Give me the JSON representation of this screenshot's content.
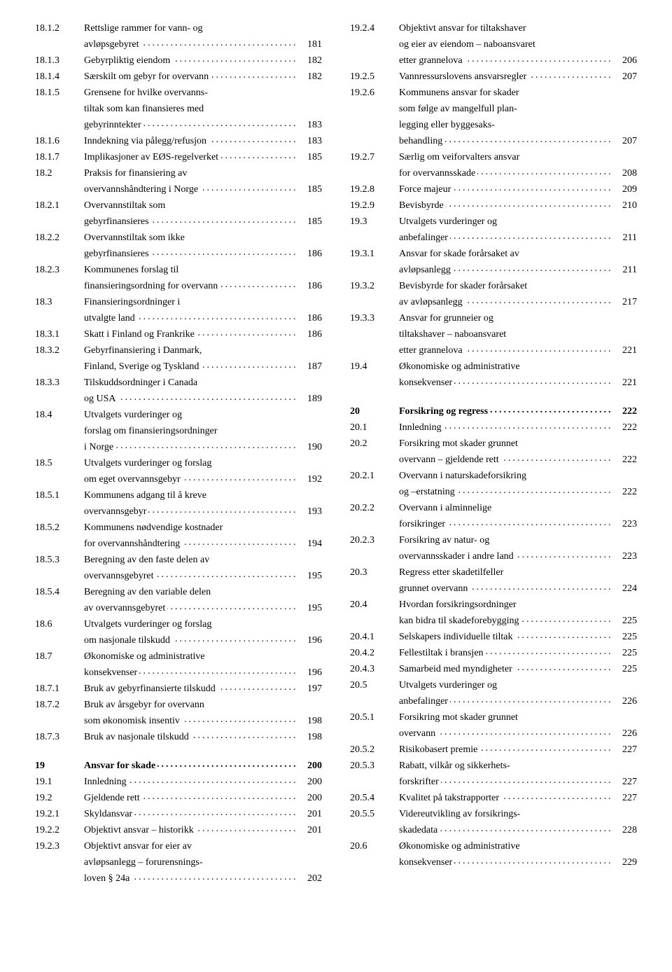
{
  "left": [
    {
      "num": "18.1.2",
      "lines": [
        "Rettslige rammer for vann- og",
        "avløpsgebyret"
      ],
      "page": "181"
    },
    {
      "num": "18.1.3",
      "lines": [
        "Gebyrpliktig eiendom"
      ],
      "page": "182"
    },
    {
      "num": "18.1.4",
      "lines": [
        "Særskilt om gebyr for overvann"
      ],
      "page": "182"
    },
    {
      "num": "18.1.5",
      "lines": [
        "Grensene for hvilke overvanns-",
        "tiltak som kan finansieres med",
        "gebyrinntekter"
      ],
      "page": "183"
    },
    {
      "num": "18.1.6",
      "lines": [
        "Inndekning via pålegg/refusjon"
      ],
      "page": "183"
    },
    {
      "num": "18.1.7",
      "lines": [
        "Implikasjoner av EØS-regelverket"
      ],
      "page": "185"
    },
    {
      "num": "18.2",
      "lines": [
        "Praksis for finansiering av",
        "overvannshåndtering i Norge"
      ],
      "page": "185"
    },
    {
      "num": "18.2.1",
      "lines": [
        "Overvannstiltak som",
        "gebyrfinansieres"
      ],
      "page": "185"
    },
    {
      "num": "18.2.2",
      "lines": [
        "Overvannstiltak som ikke",
        "gebyrfinansieres"
      ],
      "page": "186"
    },
    {
      "num": "18.2.3",
      "lines": [
        "Kommunenes forslag til",
        "finansieringsordning for overvann"
      ],
      "page": "186"
    },
    {
      "num": "18.3",
      "lines": [
        "Finansieringsordninger i",
        "utvalgte land"
      ],
      "page": "186"
    },
    {
      "num": "18.3.1",
      "lines": [
        "Skatt i Finland og Frankrike"
      ],
      "page": "186"
    },
    {
      "num": "18.3.2",
      "lines": [
        "Gebyrfinansiering i Danmark,",
        "Finland, Sverige og Tyskland"
      ],
      "page": "187"
    },
    {
      "num": "18.3.3",
      "lines": [
        "Tilskuddsordninger i Canada",
        "og USA"
      ],
      "page": "189"
    },
    {
      "num": "18.4",
      "lines": [
        "Utvalgets vurderinger og",
        "forslag om finansieringsordninger",
        "i Norge"
      ],
      "page": "190"
    },
    {
      "num": "18.5",
      "lines": [
        "Utvalgets vurderinger og forslag",
        "om eget overvannsgebyr"
      ],
      "page": "192"
    },
    {
      "num": "18.5.1",
      "lines": [
        "Kommunens adgang til å kreve",
        "overvannsgebyr"
      ],
      "page": "193"
    },
    {
      "num": "18.5.2",
      "lines": [
        "Kommunens nødvendige kostnader",
        "for overvannshåndtering"
      ],
      "page": "194"
    },
    {
      "num": "18.5.3",
      "lines": [
        "Beregning av den faste delen av",
        "overvannsgebyret"
      ],
      "page": "195"
    },
    {
      "num": "18.5.4",
      "lines": [
        "Beregning av den variable delen",
        "av overvannsgebyret"
      ],
      "page": "195"
    },
    {
      "num": "18.6",
      "lines": [
        "Utvalgets vurderinger og forslag",
        "om nasjonale tilskudd"
      ],
      "page": "196"
    },
    {
      "num": "18.7",
      "lines": [
        "Økonomiske og administrative",
        "konsekvenser"
      ],
      "page": "196"
    },
    {
      "num": "18.7.1",
      "lines": [
        "Bruk av gebyrfinansierte tilskudd"
      ],
      "page": "197"
    },
    {
      "num": "18.7.2",
      "lines": [
        "Bruk av årsgebyr for overvann",
        "som økonomisk insentiv"
      ],
      "page": "198"
    },
    {
      "num": "18.7.3",
      "lines": [
        "Bruk av nasjonale tilskudd"
      ],
      "page": "198"
    },
    {
      "spacer": true
    },
    {
      "num": "19",
      "lines": [
        "Ansvar for skade"
      ],
      "page": "200",
      "bold": true
    },
    {
      "num": "19.1",
      "lines": [
        "Innledning"
      ],
      "page": "200"
    },
    {
      "num": "19.2",
      "lines": [
        "Gjeldende rett"
      ],
      "page": "200"
    },
    {
      "num": "19.2.1",
      "lines": [
        "Skyldansvar"
      ],
      "page": "201"
    },
    {
      "num": "19.2.2",
      "lines": [
        "Objektivt ansvar – historikk"
      ],
      "page": "201"
    },
    {
      "num": "19.2.3",
      "lines": [
        "Objektivt ansvar for eier av",
        "avløpsanlegg – forurensnings-",
        "loven § 24a"
      ],
      "page": "202"
    }
  ],
  "right": [
    {
      "num": "19.2.4",
      "lines": [
        "Objektivt ansvar for tiltakshaver",
        "og eier av eiendom – naboansvaret",
        "etter grannelova"
      ],
      "page": "206"
    },
    {
      "num": "19.2.5",
      "lines": [
        "Vannressurslovens ansvarsregler"
      ],
      "page": "207"
    },
    {
      "num": "19.2.6",
      "lines": [
        "Kommunens ansvar for skader",
        "som følge av mangelfull plan-",
        "legging eller byggesaks-",
        "behandling"
      ],
      "page": "207"
    },
    {
      "num": "19.2.7",
      "lines": [
        "Særlig om veiforvalters ansvar",
        "for overvannsskade"
      ],
      "page": "208"
    },
    {
      "num": "19.2.8",
      "lines": [
        "Force majeur"
      ],
      "page": "209"
    },
    {
      "num": "19.2.9",
      "lines": [
        "Bevisbyrde"
      ],
      "page": "210"
    },
    {
      "num": "19.3",
      "lines": [
        "Utvalgets vurderinger og",
        "anbefalinger"
      ],
      "page": "211"
    },
    {
      "num": "19.3.1",
      "lines": [
        "Ansvar for skade forårsaket av",
        "avløpsanlegg"
      ],
      "page": "211"
    },
    {
      "num": "19.3.2",
      "lines": [
        "Bevisbyrde for skader forårsaket",
        "av avløpsanlegg"
      ],
      "page": "217"
    },
    {
      "num": "19.3.3",
      "lines": [
        "Ansvar for grunneier og",
        "tiltakshaver – naboansvaret",
        "etter grannelova"
      ],
      "page": "221"
    },
    {
      "num": "19.4",
      "lines": [
        "Økonomiske og administrative",
        "konsekvenser"
      ],
      "page": "221"
    },
    {
      "spacer": true
    },
    {
      "num": "20",
      "lines": [
        "Forsikring og regress"
      ],
      "page": "222",
      "bold": true
    },
    {
      "num": "20.1",
      "lines": [
        "Innledning"
      ],
      "page": "222"
    },
    {
      "num": "20.2",
      "lines": [
        "Forsikring mot skader grunnet",
        "overvann – gjeldende rett"
      ],
      "page": "222"
    },
    {
      "num": "20.2.1",
      "lines": [
        "Overvann i naturskadeforsikring",
        "og –erstatning"
      ],
      "page": "222"
    },
    {
      "num": "20.2.2",
      "lines": [
        "Overvann i alminnelige",
        "forsikringer"
      ],
      "page": "223"
    },
    {
      "num": "20.2.3",
      "lines": [
        "Forsikring av natur- og",
        "overvannsskader i andre land"
      ],
      "page": "223"
    },
    {
      "num": "20.3",
      "lines": [
        "Regress etter skadetilfeller",
        "grunnet overvann"
      ],
      "page": "224"
    },
    {
      "num": "20.4",
      "lines": [
        "Hvordan forsikringsordninger",
        "kan bidra til skadeforebygging"
      ],
      "page": "225"
    },
    {
      "num": "20.4.1",
      "lines": [
        "Selskapers individuelle tiltak"
      ],
      "page": "225"
    },
    {
      "num": "20.4.2",
      "lines": [
        "Fellestiltak i bransjen"
      ],
      "page": "225"
    },
    {
      "num": "20.4.3",
      "lines": [
        "Samarbeid med myndigheter"
      ],
      "page": "225"
    },
    {
      "num": "20.5",
      "lines": [
        "Utvalgets vurderinger og",
        "anbefalinger"
      ],
      "page": "226"
    },
    {
      "num": "20.5.1",
      "lines": [
        "Forsikring mot skader grunnet",
        "overvann"
      ],
      "page": "226"
    },
    {
      "num": "20.5.2",
      "lines": [
        "Risikobasert premie"
      ],
      "page": "227"
    },
    {
      "num": "20.5.3",
      "lines": [
        "Rabatt, vilkår og sikkerhets-",
        "forskrifter"
      ],
      "page": "227"
    },
    {
      "num": "20.5.4",
      "lines": [
        "Kvalitet på takstrapporter"
      ],
      "page": "227"
    },
    {
      "num": "20.5.5",
      "lines": [
        "Videreutvikling av forsikrings-",
        "skadedata"
      ],
      "page": "228"
    },
    {
      "num": "20.6",
      "lines": [
        "Økonomiske og administrative",
        "konsekvenser"
      ],
      "page": "229"
    }
  ]
}
